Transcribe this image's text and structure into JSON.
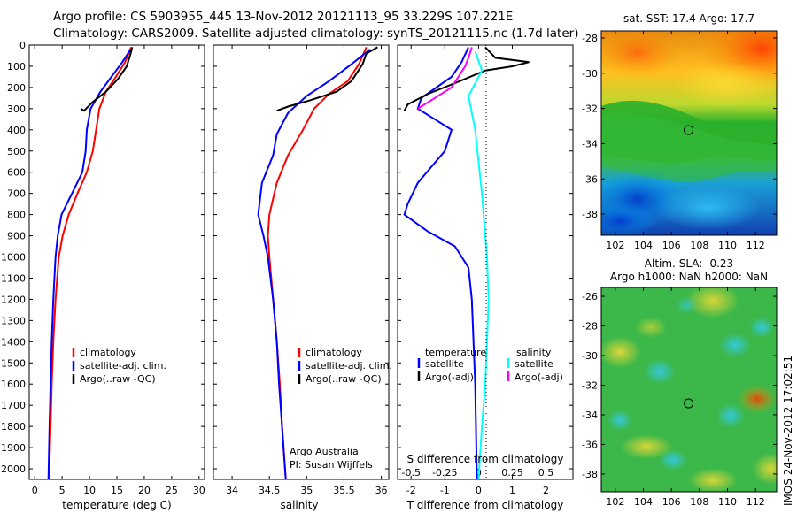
{
  "header": {
    "line1": "Argo profile: CS 5903955_445 13-Nov-2012 20121113_95 33.229S 107.221E",
    "line2": "Climatology: CARS2009. Satellite-adjusted climatology: synTS_20121115.nc (1.7d later)"
  },
  "footer": {
    "vertical_stamp": "IMOS 24-Nov-2012 17:02:51"
  },
  "colors": {
    "climatology": "#ff0000",
    "satellite": "#0000ff",
    "argo": "#000000",
    "sat_salinity": "#00ffff",
    "argo_salinity_adj": "#ff00ff"
  },
  "chart_data": [
    {
      "type": "line",
      "name": "temperature-profile",
      "xlabel": "temperature (deg C)",
      "ylabel": "",
      "xlim": [
        -1,
        31
      ],
      "ylim": [
        2050,
        0
      ],
      "xticks": [
        0,
        5,
        10,
        15,
        20,
        25,
        30
      ],
      "yticks": [
        0,
        100,
        200,
        300,
        400,
        500,
        600,
        700,
        800,
        900,
        1000,
        1100,
        1200,
        1300,
        1400,
        1500,
        1600,
        1700,
        1800,
        1900,
        2000
      ],
      "legend": [
        "climatology",
        "satellite-adj. clim.",
        "Argo(..raw -QC)"
      ],
      "legend_position": "lower-right",
      "series": [
        {
          "name": "climatology",
          "color": "#ff0000",
          "points": [
            [
              17.6,
              10
            ],
            [
              16.5,
              80
            ],
            [
              14.8,
              150
            ],
            [
              13,
              220
            ],
            [
              11.8,
              300
            ],
            [
              11.2,
              400
            ],
            [
              10.6,
              500
            ],
            [
              9.5,
              600
            ],
            [
              7.8,
              700
            ],
            [
              6.2,
              800
            ],
            [
              5.1,
              900
            ],
            [
              4.4,
              1000
            ],
            [
              3.8,
              1200
            ],
            [
              3.4,
              1400
            ],
            [
              3.1,
              1600
            ],
            [
              2.9,
              1800
            ],
            [
              2.6,
              2050
            ]
          ]
        },
        {
          "name": "satellite-adj. clim.",
          "color": "#0000ff",
          "points": [
            [
              17.5,
              20
            ],
            [
              16,
              80
            ],
            [
              14,
              150
            ],
            [
              12,
              220
            ],
            [
              10.2,
              300
            ],
            [
              9.5,
              400
            ],
            [
              9.3,
              500
            ],
            [
              8.7,
              600
            ],
            [
              6.8,
              700
            ],
            [
              4.9,
              800
            ],
            [
              4.2,
              900
            ],
            [
              3.8,
              1000
            ],
            [
              3.4,
              1200
            ],
            [
              3.1,
              1400
            ],
            [
              2.9,
              1600
            ],
            [
              2.7,
              1800
            ],
            [
              2.5,
              2050
            ]
          ]
        },
        {
          "name": "Argo(..raw -QC)",
          "color": "#000000",
          "points": [
            [
              17.8,
              10
            ],
            [
              17.5,
              40
            ],
            [
              16.8,
              100
            ],
            [
              15.2,
              160
            ],
            [
              13,
              220
            ],
            [
              10.5,
              270
            ],
            [
              9,
              310
            ],
            [
              8.4,
              300
            ]
          ]
        }
      ]
    },
    {
      "type": "line",
      "name": "salinity-profile",
      "xlabel": "salinity",
      "ylabel": "",
      "xlim": [
        33.75,
        36.1
      ],
      "ylim": [
        2050,
        0
      ],
      "xticks": [
        34,
        34.5,
        35,
        35.5,
        36
      ],
      "legend": [
        "climatology",
        "satellite-adj. clim.",
        "Argo(..raw -QC)"
      ],
      "legend_position": "lower-right",
      "notes": [
        "Argo Australia",
        "PI: Susan Wijffels"
      ],
      "series": [
        {
          "name": "climatology",
          "color": "#ff0000",
          "points": [
            [
              35.8,
              10
            ],
            [
              35.7,
              90
            ],
            [
              35.55,
              170
            ],
            [
              35.3,
              230
            ],
            [
              35.1,
              300
            ],
            [
              34.95,
              400
            ],
            [
              34.75,
              520
            ],
            [
              34.6,
              650
            ],
            [
              34.5,
              800
            ],
            [
              34.48,
              900
            ],
            [
              34.5,
              1000
            ],
            [
              34.55,
              1200
            ],
            [
              34.6,
              1400
            ],
            [
              34.64,
              1600
            ],
            [
              34.67,
              1800
            ],
            [
              34.72,
              2050
            ]
          ]
        },
        {
          "name": "satellite-adj. clim.",
          "color": "#0000ff",
          "points": [
            [
              35.85,
              20
            ],
            [
              35.6,
              90
            ],
            [
              35.3,
              170
            ],
            [
              35,
              240
            ],
            [
              34.75,
              320
            ],
            [
              34.6,
              420
            ],
            [
              34.55,
              520
            ],
            [
              34.4,
              650
            ],
            [
              34.35,
              800
            ],
            [
              34.42,
              900
            ],
            [
              34.48,
              1000
            ],
            [
              34.55,
              1200
            ],
            [
              34.6,
              1400
            ],
            [
              34.63,
              1600
            ],
            [
              34.67,
              1800
            ],
            [
              34.72,
              2050
            ]
          ]
        },
        {
          "name": "Argo(..raw -QC)",
          "color": "#000000",
          "points": [
            [
              35.95,
              10
            ],
            [
              35.8,
              40
            ],
            [
              35.75,
              90
            ],
            [
              35.6,
              170
            ],
            [
              35.4,
              220
            ],
            [
              35.05,
              260
            ],
            [
              34.75,
              290
            ],
            [
              34.6,
              310
            ]
          ]
        }
      ]
    },
    {
      "type": "line",
      "name": "difference-profile",
      "xlabel": "T difference from climatology",
      "x2label": "S difference from climatology",
      "xlim": [
        -2.4,
        2.8
      ],
      "ylim": [
        2050,
        0
      ],
      "xticks": [
        -2,
        -1,
        0,
        1,
        2
      ],
      "s_ticks": [
        "-0.5",
        "-0.25",
        "0",
        "0.25",
        "0.5"
      ],
      "legend_titles": [
        "temperature",
        "salinity"
      ],
      "legend": [
        "satellite",
        "Argo(-adj)",
        "satellite",
        "Argo(-adj)"
      ],
      "series": [
        {
          "name": "temperature satellite",
          "color": "#0000ff",
          "points": [
            [
              -0.3,
              10
            ],
            [
              -0.5,
              80
            ],
            [
              -0.8,
              150
            ],
            [
              -1.7,
              250
            ],
            [
              -1.8,
              300
            ],
            [
              -1.3,
              350
            ],
            [
              -0.8,
              400
            ],
            [
              -1,
              500
            ],
            [
              -1.8,
              650
            ],
            [
              -2.1,
              750
            ],
            [
              -2.2,
              800
            ],
            [
              -1.5,
              880
            ],
            [
              -0.7,
              950
            ],
            [
              -0.3,
              1050
            ],
            [
              -0.2,
              1200
            ],
            [
              -0.15,
              1400
            ],
            [
              -0.1,
              1600
            ],
            [
              -0.05,
              2050
            ]
          ]
        },
        {
          "name": "temperature Argo(-adj)",
          "color": "#000000",
          "points": [
            [
              0.2,
              10
            ],
            [
              0.5,
              60
            ],
            [
              1.5,
              80
            ],
            [
              1,
              100
            ],
            [
              0.2,
              120
            ],
            [
              -0.7,
              180
            ],
            [
              -1.5,
              230
            ],
            [
              -2.1,
              280
            ],
            [
              -2.2,
              310
            ]
          ]
        },
        {
          "name": "salinity satellite",
          "color": "#00ffff",
          "points": [
            [
              -0.1,
              30
            ],
            [
              0.1,
              120
            ],
            [
              -0.3,
              240
            ],
            [
              -0.1,
              400
            ],
            [
              0.1,
              700
            ],
            [
              0.2,
              900
            ],
            [
              0.25,
              1000
            ],
            [
              0.3,
              1200
            ],
            [
              0.25,
              1400
            ],
            [
              0.2,
              1600
            ],
            [
              0.1,
              1800
            ],
            [
              0,
              2050
            ]
          ]
        },
        {
          "name": "salinity Argo(-adj)",
          "color": "#ff00ff",
          "points": [
            [
              -0.2,
              10
            ],
            [
              -0.3,
              60
            ],
            [
              -0.4,
              100
            ],
            [
              -0.8,
              200
            ],
            [
              -1.5,
              270
            ],
            [
              -1.8,
              300
            ]
          ]
        }
      ]
    },
    {
      "type": "heatmap",
      "name": "sst-map",
      "title": "sat. SST: 17.4  Argo: 17.7",
      "xticks": [
        "102",
        "104",
        "106",
        "108",
        "110",
        "112"
      ],
      "yticks": [
        "-28",
        "-30",
        "-32",
        "-34",
        "-36",
        "-38"
      ],
      "xlim": [
        101,
        113.5
      ],
      "ylim": [
        -39.2,
        -27.6
      ],
      "marker": {
        "lon": 107.221,
        "lat": -33.229
      }
    },
    {
      "type": "heatmap",
      "name": "sla-map",
      "title": "Altim. SLA: -0.23",
      "subtitle": "Argo h1000: NaN  h2000: NaN",
      "xticks": [
        "102",
        "104",
        "106",
        "108",
        "110",
        "112"
      ],
      "yticks": [
        "-26",
        "-28",
        "-30",
        "-32",
        "-34",
        "-36",
        "-38"
      ],
      "xlim": [
        101,
        113.5
      ],
      "ylim": [
        -39.2,
        -25.4
      ],
      "marker": {
        "lon": 107.221,
        "lat": -33.229
      }
    }
  ]
}
